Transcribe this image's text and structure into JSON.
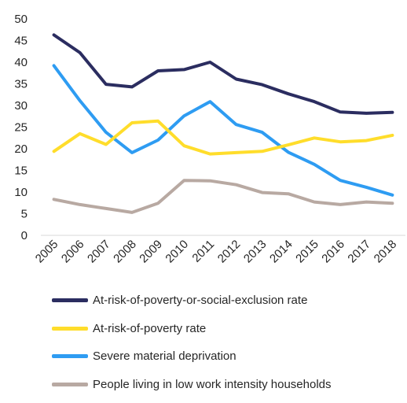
{
  "chart_data": {
    "type": "line",
    "title": "",
    "xlabel": "",
    "ylabel": "",
    "x": [
      "2005",
      "2006",
      "2007",
      "2008",
      "2009",
      "2010",
      "2011",
      "2012",
      "2013",
      "2014",
      "2015",
      "2016",
      "2017",
      "2018"
    ],
    "ylim": [
      0,
      50
    ],
    "yticks": [
      0,
      5,
      10,
      15,
      20,
      25,
      30,
      35,
      40,
      45,
      50
    ],
    "grid": false,
    "legend_position": "bottom",
    "series": [
      {
        "name": "At-risk-of-poverty-or-social-exclusion rate",
        "color": "#2b2d60",
        "values": [
          46.3,
          42.2,
          34.9,
          34.3,
          38.0,
          38.3,
          40.0,
          36.1,
          34.8,
          32.7,
          30.9,
          28.5,
          28.2,
          28.4
        ]
      },
      {
        "name": "At-risk-of-poverty rate",
        "color": "#ffdd2b",
        "values": [
          19.4,
          23.5,
          21.0,
          26.0,
          26.4,
          20.7,
          18.8,
          19.1,
          19.4,
          20.9,
          22.5,
          21.6,
          21.9,
          23.1
        ]
      },
      {
        "name": "Severe material deprivation",
        "color": "#2e9cf2",
        "values": [
          39.2,
          31.1,
          23.8,
          19.1,
          22.0,
          27.6,
          30.9,
          25.6,
          23.8,
          19.2,
          16.4,
          12.7,
          11.1,
          9.3
        ]
      },
      {
        "name": "People living in low work intensity households",
        "color": "#b8a9a2",
        "values": [
          8.3,
          7.1,
          6.2,
          5.3,
          7.4,
          12.7,
          12.6,
          11.7,
          9.9,
          9.6,
          7.7,
          7.1,
          7.7,
          7.4
        ]
      }
    ]
  }
}
